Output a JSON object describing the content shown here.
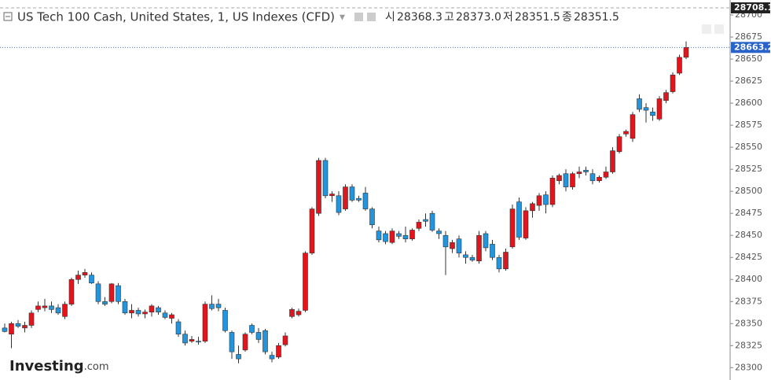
{
  "chart_data": {
    "type": "candlestick",
    "title": "US Tech 100 Cash, United States, 1, US Indexes (CFD)",
    "info": [
      {
        "label": "시",
        "value": "28368.3"
      },
      {
        "label": "고",
        "value": "28373.0"
      },
      {
        "label": "저",
        "value": "28351.5"
      },
      {
        "label": "종",
        "value": "28351.5"
      }
    ],
    "logo": {
      "brand": "Investing",
      "suffix": ".com"
    },
    "up_color": "#e3141c",
    "down_color": "#2196de",
    "ylim": [
      28286,
      28717
    ],
    "yticks": [
      28300,
      28325,
      28350,
      28375,
      28400,
      28425,
      28450,
      28475,
      28500,
      28525,
      28550,
      28575,
      28600,
      28625,
      28650,
      28675,
      28700
    ],
    "price_markers": [
      {
        "value": 28708.1,
        "color": "#222222"
      },
      {
        "value": 28663.2,
        "color": "#2962c8"
      }
    ],
    "series": {
      "open": [
        28345,
        28338,
        28350,
        28345,
        28348,
        28366,
        28368,
        28370,
        28368,
        28358,
        28372,
        28400,
        28405,
        28405,
        28395,
        28375,
        28375,
        28393,
        28375,
        28362,
        28365,
        28361,
        28363,
        28368,
        28362,
        28356,
        28352,
        28338,
        28330,
        28330,
        28330,
        28372,
        28372,
        28365,
        28340,
        28315,
        28320,
        28348,
        28340,
        28342,
        28314,
        28312,
        28326,
        28358,
        28360,
        28365,
        28430,
        28475,
        28535,
        28495,
        28495,
        28480,
        28505,
        28492,
        28498,
        28480,
        28455,
        28452,
        28442,
        28452,
        28450,
        28446,
        28458,
        28468,
        28475,
        28455,
        28450,
        28435,
        28446,
        28428,
        28425,
        28421,
        28452,
        28440,
        28425,
        28412,
        28437,
        28488,
        28447,
        28478,
        28484,
        28496,
        28485,
        28512,
        28520,
        28505,
        28520,
        28524,
        28520,
        28512,
        28516,
        28522,
        28545,
        28565,
        28560,
        28605,
        28595,
        28590,
        28582,
        28603,
        28613,
        28634,
        28652
      ],
      "high": [
        28350,
        28352,
        28354,
        28352,
        28365,
        28375,
        28378,
        28375,
        28372,
        28375,
        28402,
        28410,
        28412,
        28408,
        28398,
        28380,
        28396,
        28396,
        28378,
        28372,
        28368,
        28366,
        28372,
        28370,
        28365,
        28362,
        28355,
        28342,
        28336,
        28335,
        28375,
        28382,
        28378,
        28368,
        28342,
        28325,
        28340,
        28350,
        28345,
        28344,
        28318,
        28328,
        28340,
        28368,
        28367,
        28432,
        28482,
        28538,
        28538,
        28500,
        28500,
        28508,
        28508,
        28495,
        28505,
        28482,
        28460,
        28455,
        28458,
        28455,
        28460,
        28458,
        28468,
        28475,
        28478,
        28458,
        28455,
        28445,
        28450,
        28432,
        28428,
        28455,
        28455,
        28445,
        28428,
        28435,
        28485,
        28493,
        28482,
        28488,
        28498,
        28500,
        28518,
        28520,
        28525,
        28522,
        28528,
        28528,
        28525,
        28518,
        28528,
        28550,
        28565,
        28570,
        28590,
        28610,
        28600,
        28595,
        28608,
        28615,
        28635,
        28655,
        28670
      ],
      "low": [
        28340,
        28322,
        28345,
        28340,
        28345,
        28363,
        28364,
        28362,
        28360,
        28355,
        28370,
        28395,
        28402,
        28395,
        28372,
        28370,
        28373,
        28372,
        28360,
        28356,
        28358,
        28356,
        28358,
        28360,
        28355,
        28350,
        28335,
        28325,
        28328,
        28326,
        28328,
        28365,
        28364,
        28340,
        28310,
        28305,
        28318,
        28338,
        28328,
        28315,
        28306,
        28310,
        28324,
        28356,
        28358,
        28363,
        28428,
        28472,
        28492,
        28488,
        28473,
        28478,
        28488,
        28488,
        28478,
        28458,
        28442,
        28440,
        28440,
        28446,
        28442,
        28444,
        28455,
        28460,
        28454,
        28446,
        28405,
        28430,
        28425,
        28418,
        28420,
        28418,
        28432,
        28422,
        28408,
        28410,
        28435,
        28445,
        28445,
        28470,
        28478,
        28475,
        28482,
        28508,
        28500,
        28502,
        28515,
        28518,
        28508,
        28510,
        28514,
        28520,
        28543,
        28562,
        28556,
        28590,
        28578,
        28580,
        28580,
        28600,
        28611,
        28632,
        28650
      ],
      "close": [
        28341,
        28350,
        28347,
        28348,
        28362,
        28370,
        28370,
        28366,
        28362,
        28372,
        28400,
        28405,
        28408,
        28396,
        28375,
        28372,
        28395,
        28375,
        28362,
        28365,
        28361,
        28363,
        28370,
        28363,
        28357,
        28360,
        28338,
        28328,
        28332,
        28329,
        28372,
        28367,
        28368,
        28342,
        28318,
        28310,
        28338,
        28340,
        28332,
        28318,
        28310,
        28325,
        28336,
        28366,
        28364,
        28430,
        28480,
        28535,
        28495,
        28497,
        28476,
        28505,
        28490,
        28490,
        28480,
        28462,
        28445,
        28443,
        28455,
        28449,
        28446,
        28456,
        28465,
        28466,
        28456,
        28452,
        28437,
        28442,
        28430,
        28425,
        28422,
        28450,
        28436,
        28425,
        28412,
        28431,
        28480,
        28448,
        28478,
        28486,
        28495,
        28485,
        28515,
        28518,
        28505,
        28520,
        28522,
        28522,
        28512,
        28516,
        28522,
        28546,
        28562,
        28568,
        28587,
        28593,
        28592,
        28586,
        28605,
        28612,
        28632,
        28652,
        28663.2
      ]
    }
  }
}
